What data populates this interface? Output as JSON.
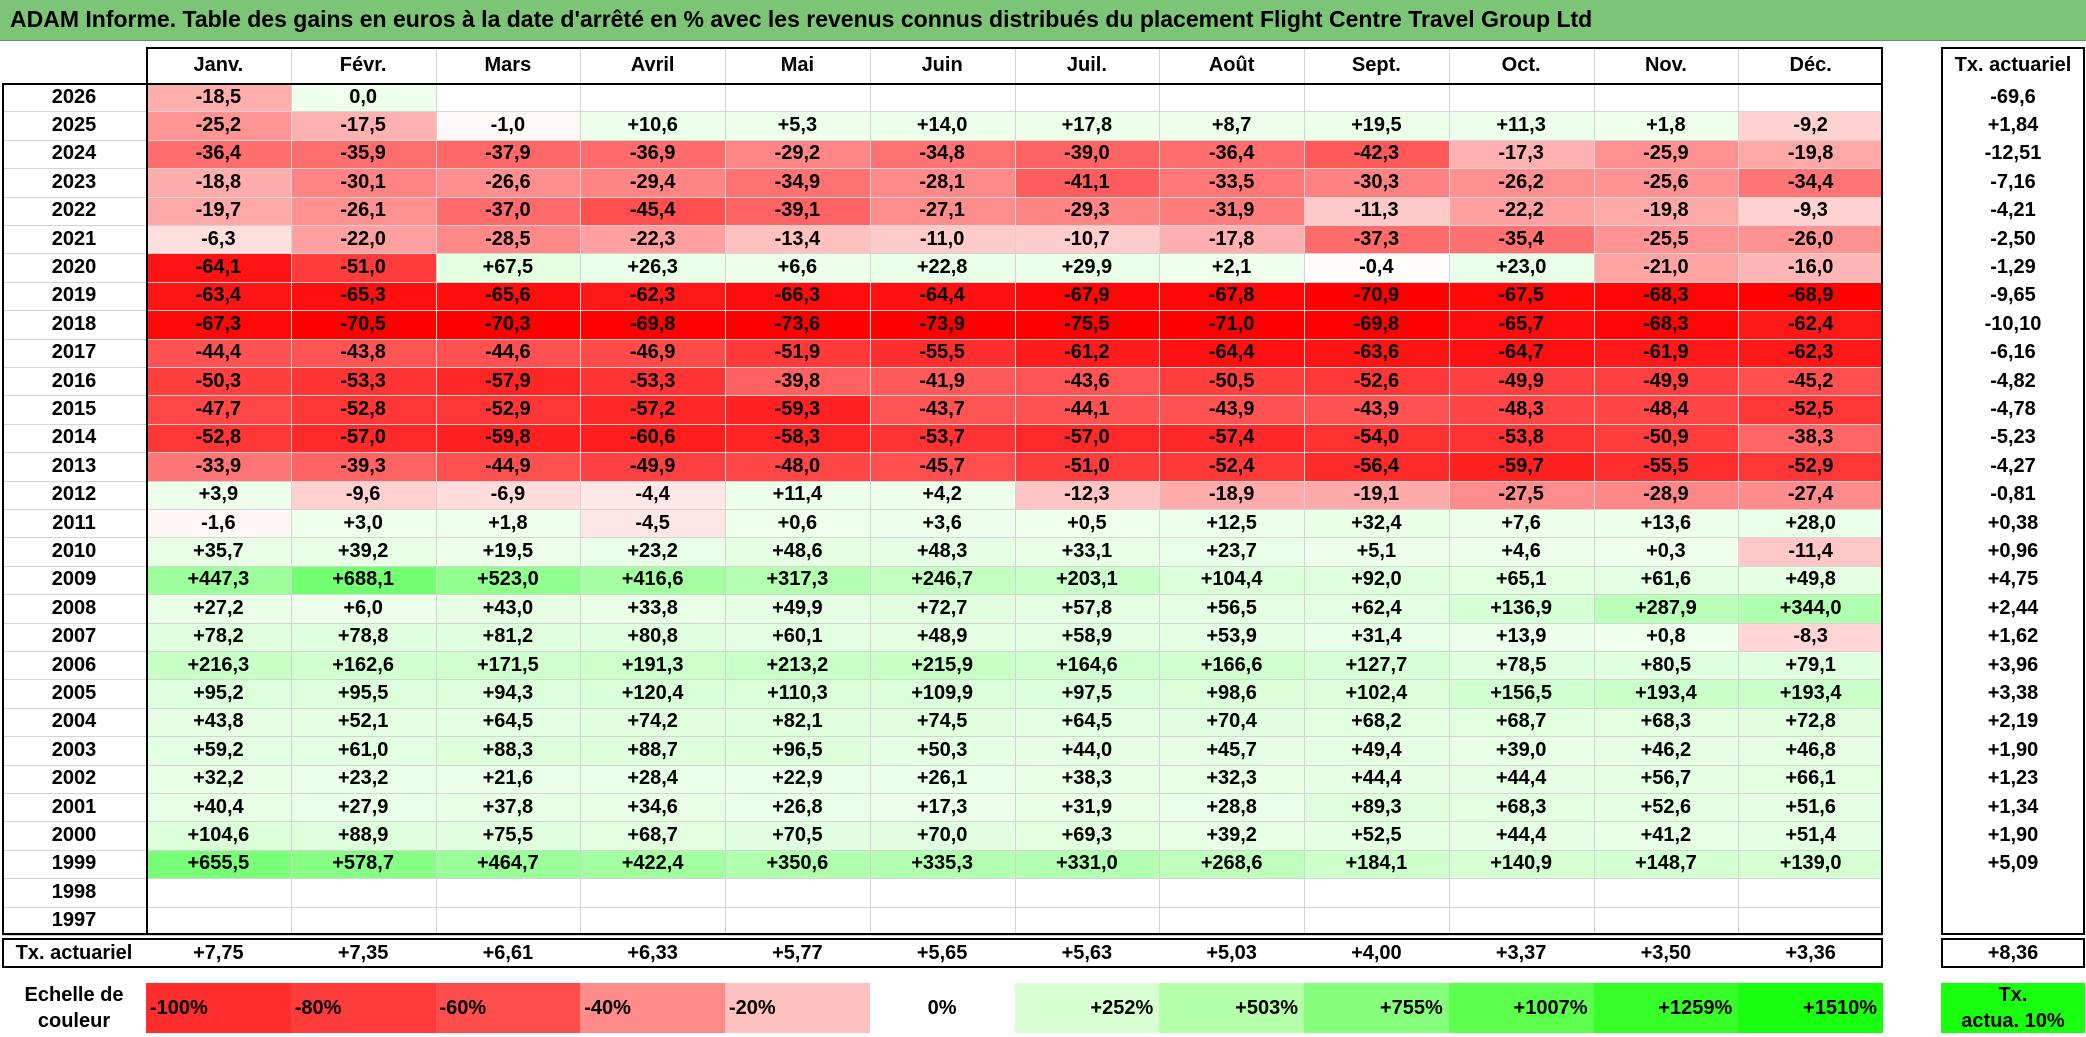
{
  "title": "ADAM Informe. Table des gains en euros à la date d'arrêté en % avec les revenus connus distribués du placement Flight Centre Travel Group Ltd",
  "chart_data": {
    "type": "heatmap",
    "months": [
      "Janv.",
      "Févr.",
      "Mars",
      "Avril",
      "Mai",
      "Juin",
      "Juil.",
      "Août",
      "Sept.",
      "Oct.",
      "Nov.",
      "Déc."
    ],
    "rate_header": "Tx. actuariel",
    "rows": [
      {
        "year": "2026",
        "values": [
          "-18,5",
          "0,0",
          "",
          "",
          "",
          "",
          "",
          "",
          "",
          "",
          "",
          ""
        ],
        "rate": "-69,6"
      },
      {
        "year": "2025",
        "values": [
          "-25,2",
          "-17,5",
          "-1,0",
          "+10,6",
          "+5,3",
          "+14,0",
          "+17,8",
          "+8,7",
          "+19,5",
          "+11,3",
          "+1,8",
          "-9,2"
        ],
        "rate": "+1,84"
      },
      {
        "year": "2024",
        "values": [
          "-36,4",
          "-35,9",
          "-37,9",
          "-36,9",
          "-29,2",
          "-34,8",
          "-39,0",
          "-36,4",
          "-42,3",
          "-17,3",
          "-25,9",
          "-19,8"
        ],
        "rate": "-12,51"
      },
      {
        "year": "2023",
        "values": [
          "-18,8",
          "-30,1",
          "-26,6",
          "-29,4",
          "-34,9",
          "-28,1",
          "-41,1",
          "-33,5",
          "-30,3",
          "-26,2",
          "-25,6",
          "-34,4"
        ],
        "rate": "-7,16"
      },
      {
        "year": "2022",
        "values": [
          "-19,7",
          "-26,1",
          "-37,0",
          "-45,4",
          "-39,1",
          "-27,1",
          "-29,3",
          "-31,9",
          "-11,3",
          "-22,2",
          "-19,8",
          "-9,3"
        ],
        "rate": "-4,21"
      },
      {
        "year": "2021",
        "values": [
          "-6,3",
          "-22,0",
          "-28,5",
          "-22,3",
          "-13,4",
          "-11,0",
          "-10,7",
          "-17,8",
          "-37,3",
          "-35,4",
          "-25,5",
          "-26,0"
        ],
        "rate": "-2,50"
      },
      {
        "year": "2020",
        "values": [
          "-64,1",
          "-51,0",
          "+67,5",
          "+26,3",
          "+6,6",
          "+22,8",
          "+29,9",
          "+2,1",
          "-0,4",
          "+23,0",
          "-21,0",
          "-16,0"
        ],
        "rate": "-1,29"
      },
      {
        "year": "2019",
        "values": [
          "-63,4",
          "-65,3",
          "-65,6",
          "-62,3",
          "-66,3",
          "-64,4",
          "-67,9",
          "-67,8",
          "-70,9",
          "-67,5",
          "-68,3",
          "-68,9"
        ],
        "rate": "-9,65"
      },
      {
        "year": "2018",
        "values": [
          "-67,3",
          "-70,5",
          "-70,3",
          "-69,8",
          "-73,6",
          "-73,9",
          "-75,5",
          "-71,0",
          "-69,8",
          "-65,7",
          "-68,3",
          "-62,4"
        ],
        "rate": "-10,10"
      },
      {
        "year": "2017",
        "values": [
          "-44,4",
          "-43,8",
          "-44,6",
          "-46,9",
          "-51,9",
          "-55,5",
          "-61,2",
          "-64,4",
          "-63,6",
          "-64,7",
          "-61,9",
          "-62,3"
        ],
        "rate": "-6,16"
      },
      {
        "year": "2016",
        "values": [
          "-50,3",
          "-53,3",
          "-57,9",
          "-53,3",
          "-39,8",
          "-41,9",
          "-43,6",
          "-50,5",
          "-52,6",
          "-49,9",
          "-49,9",
          "-45,2"
        ],
        "rate": "-4,82"
      },
      {
        "year": "2015",
        "values": [
          "-47,7",
          "-52,8",
          "-52,9",
          "-57,2",
          "-59,3",
          "-43,7",
          "-44,1",
          "-43,9",
          "-43,9",
          "-48,3",
          "-48,4",
          "-52,5"
        ],
        "rate": "-4,78"
      },
      {
        "year": "2014",
        "values": [
          "-52,8",
          "-57,0",
          "-59,8",
          "-60,6",
          "-58,3",
          "-53,7",
          "-57,0",
          "-57,4",
          "-54,0",
          "-53,8",
          "-50,9",
          "-38,3"
        ],
        "rate": "-5,23"
      },
      {
        "year": "2013",
        "values": [
          "-33,9",
          "-39,3",
          "-44,9",
          "-49,9",
          "-48,0",
          "-45,7",
          "-51,0",
          "-52,4",
          "-56,4",
          "-59,7",
          "-55,5",
          "-52,9"
        ],
        "rate": "-4,27"
      },
      {
        "year": "2012",
        "values": [
          "+3,9",
          "-9,6",
          "-6,9",
          "-4,4",
          "+11,4",
          "+4,2",
          "-12,3",
          "-18,9",
          "-19,1",
          "-27,5",
          "-28,9",
          "-27,4"
        ],
        "rate": "-0,81"
      },
      {
        "year": "2011",
        "values": [
          "-1,6",
          "+3,0",
          "+1,8",
          "-4,5",
          "+0,6",
          "+3,6",
          "+0,5",
          "+12,5",
          "+32,4",
          "+7,6",
          "+13,6",
          "+28,0"
        ],
        "rate": "+0,38"
      },
      {
        "year": "2010",
        "values": [
          "+35,7",
          "+39,2",
          "+19,5",
          "+23,2",
          "+48,6",
          "+48,3",
          "+33,1",
          "+23,7",
          "+5,1",
          "+4,6",
          "+0,3",
          "-11,4"
        ],
        "rate": "+0,96"
      },
      {
        "year": "2009",
        "values": [
          "+447,3",
          "+688,1",
          "+523,0",
          "+416,6",
          "+317,3",
          "+246,7",
          "+203,1",
          "+104,4",
          "+92,0",
          "+65,1",
          "+61,6",
          "+49,8"
        ],
        "rate": "+4,75"
      },
      {
        "year": "2008",
        "values": [
          "+27,2",
          "+6,0",
          "+43,0",
          "+33,8",
          "+49,9",
          "+72,7",
          "+57,8",
          "+56,5",
          "+62,4",
          "+136,9",
          "+287,9",
          "+344,0"
        ],
        "rate": "+2,44"
      },
      {
        "year": "2007",
        "values": [
          "+78,2",
          "+78,8",
          "+81,2",
          "+80,8",
          "+60,1",
          "+48,9",
          "+58,9",
          "+53,9",
          "+31,4",
          "+13,9",
          "+0,8",
          "-8,3"
        ],
        "rate": "+1,62"
      },
      {
        "year": "2006",
        "values": [
          "+216,3",
          "+162,6",
          "+171,5",
          "+191,3",
          "+213,2",
          "+215,9",
          "+164,6",
          "+166,6",
          "+127,7",
          "+78,5",
          "+80,5",
          "+79,1"
        ],
        "rate": "+3,96"
      },
      {
        "year": "2005",
        "values": [
          "+95,2",
          "+95,5",
          "+94,3",
          "+120,4",
          "+110,3",
          "+109,9",
          "+97,5",
          "+98,6",
          "+102,4",
          "+156,5",
          "+193,4",
          "+193,4"
        ],
        "rate": "+3,38"
      },
      {
        "year": "2004",
        "values": [
          "+43,8",
          "+52,1",
          "+64,5",
          "+74,2",
          "+82,1",
          "+74,5",
          "+64,5",
          "+70,4",
          "+68,2",
          "+68,7",
          "+68,3",
          "+72,8"
        ],
        "rate": "+2,19"
      },
      {
        "year": "2003",
        "values": [
          "+59,2",
          "+61,0",
          "+88,3",
          "+88,7",
          "+96,5",
          "+50,3",
          "+44,0",
          "+45,7",
          "+49,4",
          "+39,0",
          "+46,2",
          "+46,8"
        ],
        "rate": "+1,90"
      },
      {
        "year": "2002",
        "values": [
          "+32,2",
          "+23,2",
          "+21,6",
          "+28,4",
          "+22,9",
          "+26,1",
          "+38,3",
          "+32,3",
          "+44,4",
          "+44,4",
          "+56,7",
          "+66,1"
        ],
        "rate": "+1,23"
      },
      {
        "year": "2001",
        "values": [
          "+40,4",
          "+27,9",
          "+37,8",
          "+34,6",
          "+26,8",
          "+17,3",
          "+31,9",
          "+28,8",
          "+89,3",
          "+68,3",
          "+52,6",
          "+51,6"
        ],
        "rate": "+1,34"
      },
      {
        "year": "2000",
        "values": [
          "+104,6",
          "+88,9",
          "+75,5",
          "+68,7",
          "+70,5",
          "+70,0",
          "+69,3",
          "+39,2",
          "+52,5",
          "+44,4",
          "+41,2",
          "+51,4"
        ],
        "rate": "+1,90"
      },
      {
        "year": "1999",
        "values": [
          "+655,5",
          "+578,7",
          "+464,7",
          "+422,4",
          "+350,6",
          "+335,3",
          "+331,0",
          "+268,6",
          "+184,1",
          "+140,9",
          "+148,7",
          "+139,0"
        ],
        "rate": "+5,09"
      },
      {
        "year": "1998",
        "values": [
          "",
          "",
          "",
          "",
          "",
          "",
          "",
          "",
          "",
          "",
          "",
          ""
        ],
        "rate": ""
      },
      {
        "year": "1997",
        "values": [
          "",
          "",
          "",
          "",
          "",
          "",
          "",
          "",
          "",
          "",
          "",
          ""
        ],
        "rate": ""
      }
    ],
    "footer": {
      "label": "Tx. actuariel",
      "values": [
        "+7,75",
        "+7,35",
        "+6,61",
        "+6,33",
        "+5,77",
        "+5,65",
        "+5,63",
        "+5,03",
        "+4,00",
        "+3,37",
        "+3,50",
        "+3,36"
      ],
      "rate": "+8,36"
    },
    "scale": {
      "label_line1": "Echelle de",
      "label_line2": "couleur",
      "steps": [
        "-100%",
        "-80%",
        "-60%",
        "-40%",
        "-20%",
        "0%",
        "+252%",
        "+503%",
        "+755%",
        "+1007%",
        "+1259%",
        "+1510%"
      ],
      "rate_line1": "Tx.",
      "rate_line2": "actua. 10%"
    },
    "colors": {
      "negative_max": "#ff0000",
      "zero": "#ffffff",
      "positive_max": "#00ff00",
      "title_bar": "#7cc576"
    }
  }
}
